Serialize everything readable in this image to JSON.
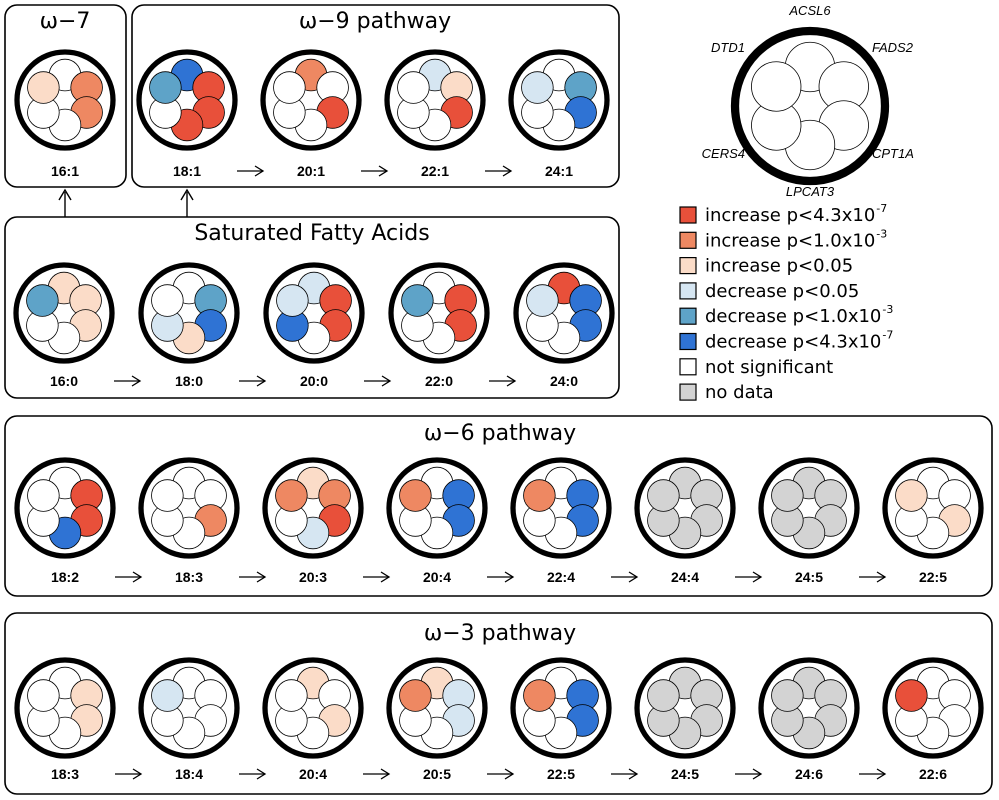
{
  "colors": {
    "inc3": "#e8503a",
    "inc2": "#ee8862",
    "inc1": "#fbdcc8",
    "dec1": "#d6e6f2",
    "dec2": "#5ea3c8",
    "dec3": "#2f73d4",
    "ns": "#ffffff",
    "nd": "#d3d3d3"
  },
  "gene_order": [
    "ACSL6",
    "FADS2",
    "CPT1A",
    "LPCAT3",
    "CERS4",
    "DTD1"
  ],
  "gene_key": {
    "ACSL6": "ACSL6",
    "FADS2": "FADS2",
    "CPT1A": "CPT1A",
    "LPCAT3": "LPCAT3",
    "CERS4": "CERS4",
    "DTD1": "DTD1"
  },
  "legend": [
    {
      "color": "inc3",
      "text": "increase p<4.3x10",
      "sup": "-7"
    },
    {
      "color": "inc2",
      "text": "increase p<1.0x10",
      "sup": "-3"
    },
    {
      "color": "inc1",
      "text": "increase p<0.05",
      "sup": ""
    },
    {
      "color": "dec1",
      "text": "decrease p<0.05",
      "sup": ""
    },
    {
      "color": "dec2",
      "text": "decrease p<1.0x10",
      "sup": "-3"
    },
    {
      "color": "dec3",
      "text": "decrease p<4.3x10",
      "sup": "-7"
    },
    {
      "color": "ns",
      "text": "not significant",
      "sup": ""
    },
    {
      "color": "nd",
      "text": "no data",
      "sup": ""
    }
  ],
  "panels": [
    {
      "id": "omega7",
      "title": "ω−7",
      "items": [
        {
          "label": "16:1",
          "states": [
            "ns",
            "inc2",
            "inc2",
            "ns",
            "ns",
            "inc1"
          ]
        }
      ]
    },
    {
      "id": "omega9",
      "title": "ω−9 pathway",
      "items": [
        {
          "label": "18:1",
          "states": [
            "dec3",
            "inc3",
            "inc3",
            "inc3",
            "ns",
            "dec2"
          ]
        },
        {
          "label": "20:1",
          "states": [
            "inc2",
            "ns",
            "inc3",
            "ns",
            "ns",
            "ns"
          ]
        },
        {
          "label": "22:1",
          "states": [
            "dec1",
            "inc1",
            "inc3",
            "ns",
            "ns",
            "ns"
          ]
        },
        {
          "label": "24:1",
          "states": [
            "ns",
            "dec2",
            "dec3",
            "ns",
            "ns",
            "dec1"
          ]
        }
      ]
    },
    {
      "id": "sfa",
      "title": "Saturated Fatty Acids",
      "items": [
        {
          "label": "16:0",
          "states": [
            "inc1",
            "inc1",
            "inc1",
            "ns",
            "ns",
            "dec2"
          ]
        },
        {
          "label": "18:0",
          "states": [
            "ns",
            "dec2",
            "dec3",
            "inc1",
            "dec1",
            "ns"
          ]
        },
        {
          "label": "20:0",
          "states": [
            "dec1",
            "inc3",
            "inc3",
            "ns",
            "dec3",
            "dec1"
          ]
        },
        {
          "label": "22:0",
          "states": [
            "ns",
            "inc3",
            "inc3",
            "ns",
            "ns",
            "dec2"
          ]
        },
        {
          "label": "24:0",
          "states": [
            "inc3",
            "dec3",
            "dec3",
            "ns",
            "ns",
            "dec1"
          ]
        }
      ]
    },
    {
      "id": "omega6",
      "title": "ω−6 pathway",
      "items": [
        {
          "label": "18:2",
          "states": [
            "ns",
            "inc3",
            "inc3",
            "dec3",
            "ns",
            "ns"
          ]
        },
        {
          "label": "18:3",
          "states": [
            "ns",
            "ns",
            "inc2",
            "ns",
            "ns",
            "ns"
          ]
        },
        {
          "label": "20:3",
          "states": [
            "inc1",
            "inc2",
            "inc3",
            "dec1",
            "ns",
            "inc2"
          ]
        },
        {
          "label": "20:4",
          "states": [
            "ns",
            "dec3",
            "dec3",
            "ns",
            "ns",
            "inc2"
          ]
        },
        {
          "label": "22:4",
          "states": [
            "ns",
            "dec3",
            "dec3",
            "ns",
            "ns",
            "inc2"
          ]
        },
        {
          "label": "24:4",
          "states": [
            "nd",
            "nd",
            "nd",
            "nd",
            "nd",
            "nd"
          ]
        },
        {
          "label": "24:5",
          "states": [
            "nd",
            "nd",
            "nd",
            "nd",
            "nd",
            "nd"
          ]
        },
        {
          "label": "22:5",
          "states": [
            "ns",
            "ns",
            "inc1",
            "ns",
            "ns",
            "inc1"
          ]
        }
      ]
    },
    {
      "id": "omega3",
      "title": "ω−3 pathway",
      "items": [
        {
          "label": "18:3",
          "states": [
            "ns",
            "inc1",
            "inc1",
            "ns",
            "ns",
            "ns"
          ]
        },
        {
          "label": "18:4",
          "states": [
            "ns",
            "ns",
            "ns",
            "ns",
            "ns",
            "dec1"
          ]
        },
        {
          "label": "20:4",
          "states": [
            "inc1",
            "ns",
            "inc1",
            "ns",
            "ns",
            "ns"
          ]
        },
        {
          "label": "20:5",
          "states": [
            "inc1",
            "dec1",
            "dec1",
            "ns",
            "ns",
            "inc2"
          ]
        },
        {
          "label": "22:5",
          "states": [
            "ns",
            "dec3",
            "dec3",
            "ns",
            "ns",
            "inc2"
          ]
        },
        {
          "label": "24:5",
          "states": [
            "nd",
            "nd",
            "nd",
            "nd",
            "nd",
            "nd"
          ]
        },
        {
          "label": "24:6",
          "states": [
            "nd",
            "nd",
            "nd",
            "nd",
            "nd",
            "nd"
          ]
        },
        {
          "label": "22:6",
          "states": [
            "ns",
            "ns",
            "ns",
            "ns",
            "ns",
            "inc3"
          ]
        }
      ]
    }
  ]
}
